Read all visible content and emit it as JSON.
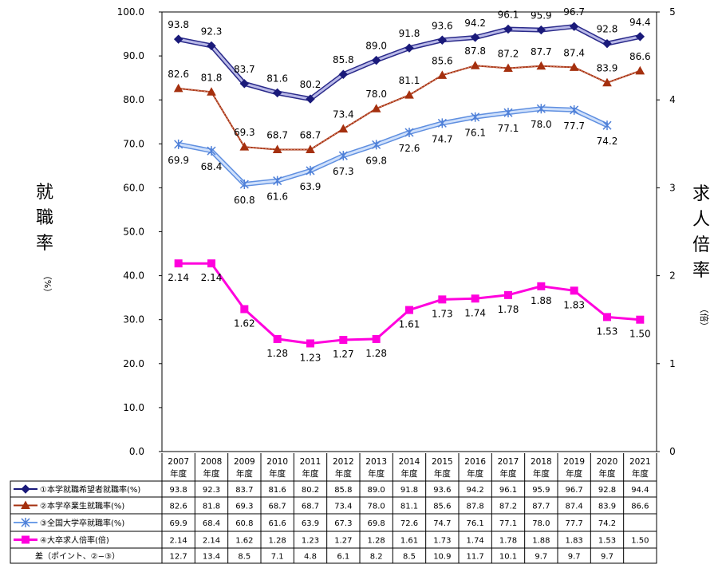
{
  "chart_data": {
    "type": "line",
    "ylabel_left": "就職率",
    "ylabel_left_unit": "（%）",
    "ylabel_right": "求人倍率",
    "ylabel_right_unit": "（倍）",
    "left_axis": {
      "min": 0,
      "max": 100,
      "ticks": [
        "0.0",
        "10.0",
        "20.0",
        "30.0",
        "40.0",
        "50.0",
        "60.0",
        "70.0",
        "80.0",
        "90.0",
        "100.0"
      ]
    },
    "right_axis": {
      "min": 0,
      "max": 5,
      "ticks": [
        "0",
        "1",
        "2",
        "3",
        "4",
        "5"
      ]
    },
    "categories": [
      [
        "2007",
        "年度"
      ],
      [
        "2008",
        "年度"
      ],
      [
        "2009",
        "年度"
      ],
      [
        "2010",
        "年度"
      ],
      [
        "2011",
        "年度"
      ],
      [
        "2012",
        "年度"
      ],
      [
        "2013",
        "年度"
      ],
      [
        "2014",
        "年度"
      ],
      [
        "2015",
        "年度"
      ],
      [
        "2016",
        "年度"
      ],
      [
        "2017",
        "年度"
      ],
      [
        "2018",
        "年度"
      ],
      [
        "2019",
        "年度"
      ],
      [
        "2020",
        "年度"
      ],
      [
        "2021",
        "年度"
      ]
    ],
    "series": [
      {
        "name": "①本学就職希望者就職率(%)",
        "axis": "left",
        "color": "#1a1a7a",
        "marker": "diamond",
        "values": [
          93.8,
          92.3,
          83.7,
          81.6,
          80.2,
          85.8,
          89.0,
          91.8,
          93.6,
          94.2,
          96.1,
          95.9,
          96.7,
          92.8,
          94.4
        ],
        "labels": [
          "93.8",
          "92.3",
          "83.7",
          "81.6",
          "80.2",
          "85.8",
          "89.0",
          "91.8",
          "93.6",
          "94.2",
          "96.1",
          "95.9",
          "96.7",
          "92.8",
          "94.4"
        ]
      },
      {
        "name": "②本学卒業生就職率(%)",
        "axis": "left",
        "color": "#a5300f",
        "marker": "triangle",
        "values": [
          82.6,
          81.8,
          69.3,
          68.7,
          68.7,
          73.4,
          78.0,
          81.1,
          85.6,
          87.8,
          87.2,
          87.7,
          87.4,
          83.9,
          86.6
        ],
        "labels": [
          "82.6",
          "81.8",
          "69.3",
          "68.7",
          "68.7",
          "73.4",
          "78.0",
          "81.1",
          "85.6",
          "87.8",
          "87.2",
          "87.7",
          "87.4",
          "83.9",
          "86.6"
        ]
      },
      {
        "name": "③全国大学卒就職率(%)",
        "axis": "left",
        "color": "#6f9fe8",
        "marker": "star",
        "values": [
          69.9,
          68.4,
          60.8,
          61.6,
          63.9,
          67.3,
          69.8,
          72.6,
          74.7,
          76.1,
          77.1,
          78.0,
          77.7,
          74.2,
          null
        ],
        "labels": [
          "69.9",
          "68.4",
          "60.8",
          "61.6",
          "63.9",
          "67.3",
          "69.8",
          "72.6",
          "74.7",
          "76.1",
          "77.1",
          "78.0",
          "77.7",
          "74.2",
          ""
        ]
      },
      {
        "name": "④大卒求人倍率(倍)",
        "axis": "right",
        "color": "#ff00dd",
        "marker": "square",
        "values": [
          2.14,
          2.14,
          1.62,
          1.28,
          1.23,
          1.27,
          1.28,
          1.61,
          1.73,
          1.74,
          1.78,
          1.88,
          1.83,
          1.53,
          1.5
        ],
        "labels": [
          "2.14",
          "2.14",
          "1.62",
          "1.28",
          "1.23",
          "1.27",
          "1.28",
          "1.61",
          "1.73",
          "1.74",
          "1.78",
          "1.88",
          "1.83",
          "1.53",
          "1.50"
        ]
      }
    ],
    "table": {
      "rows": [
        {
          "name": "①本学就職希望者就職率(%)",
          "marker": "diamond",
          "color": "#1a1a7a",
          "cells": [
            "93.8",
            "92.3",
            "83.7",
            "81.6",
            "80.2",
            "85.8",
            "89.0",
            "91.8",
            "93.6",
            "94.2",
            "96.1",
            "95.9",
            "96.7",
            "92.8",
            "94.4"
          ]
        },
        {
          "name": "②本学卒業生就職率(%)",
          "marker": "triangle",
          "color": "#a5300f",
          "cells": [
            "82.6",
            "81.8",
            "69.3",
            "68.7",
            "68.7",
            "73.4",
            "78.0",
            "81.1",
            "85.6",
            "87.8",
            "87.2",
            "87.7",
            "87.4",
            "83.9",
            "86.6"
          ]
        },
        {
          "name": "③全国大学卒就職率(%)",
          "marker": "star",
          "color": "#6f9fe8",
          "cells": [
            "69.9",
            "68.4",
            "60.8",
            "61.6",
            "63.9",
            "67.3",
            "69.8",
            "72.6",
            "74.7",
            "76.1",
            "77.1",
            "78.0",
            "77.7",
            "74.2",
            ""
          ]
        },
        {
          "name": "④大卒求人倍率(倍)",
          "marker": "square",
          "color": "#ff00dd",
          "cells": [
            "2.14",
            "2.14",
            "1.62",
            "1.28",
            "1.23",
            "1.27",
            "1.28",
            "1.61",
            "1.73",
            "1.74",
            "1.78",
            "1.88",
            "1.83",
            "1.53",
            "1.50"
          ]
        },
        {
          "name": "差（ポイント、②−③）",
          "marker": "none",
          "color": "",
          "cells": [
            "12.7",
            "13.4",
            "8.5",
            "7.1",
            "4.8",
            "6.1",
            "8.2",
            "8.5",
            "10.9",
            "11.7",
            "10.1",
            "9.7",
            "9.7",
            "9.7",
            ""
          ]
        }
      ]
    }
  }
}
